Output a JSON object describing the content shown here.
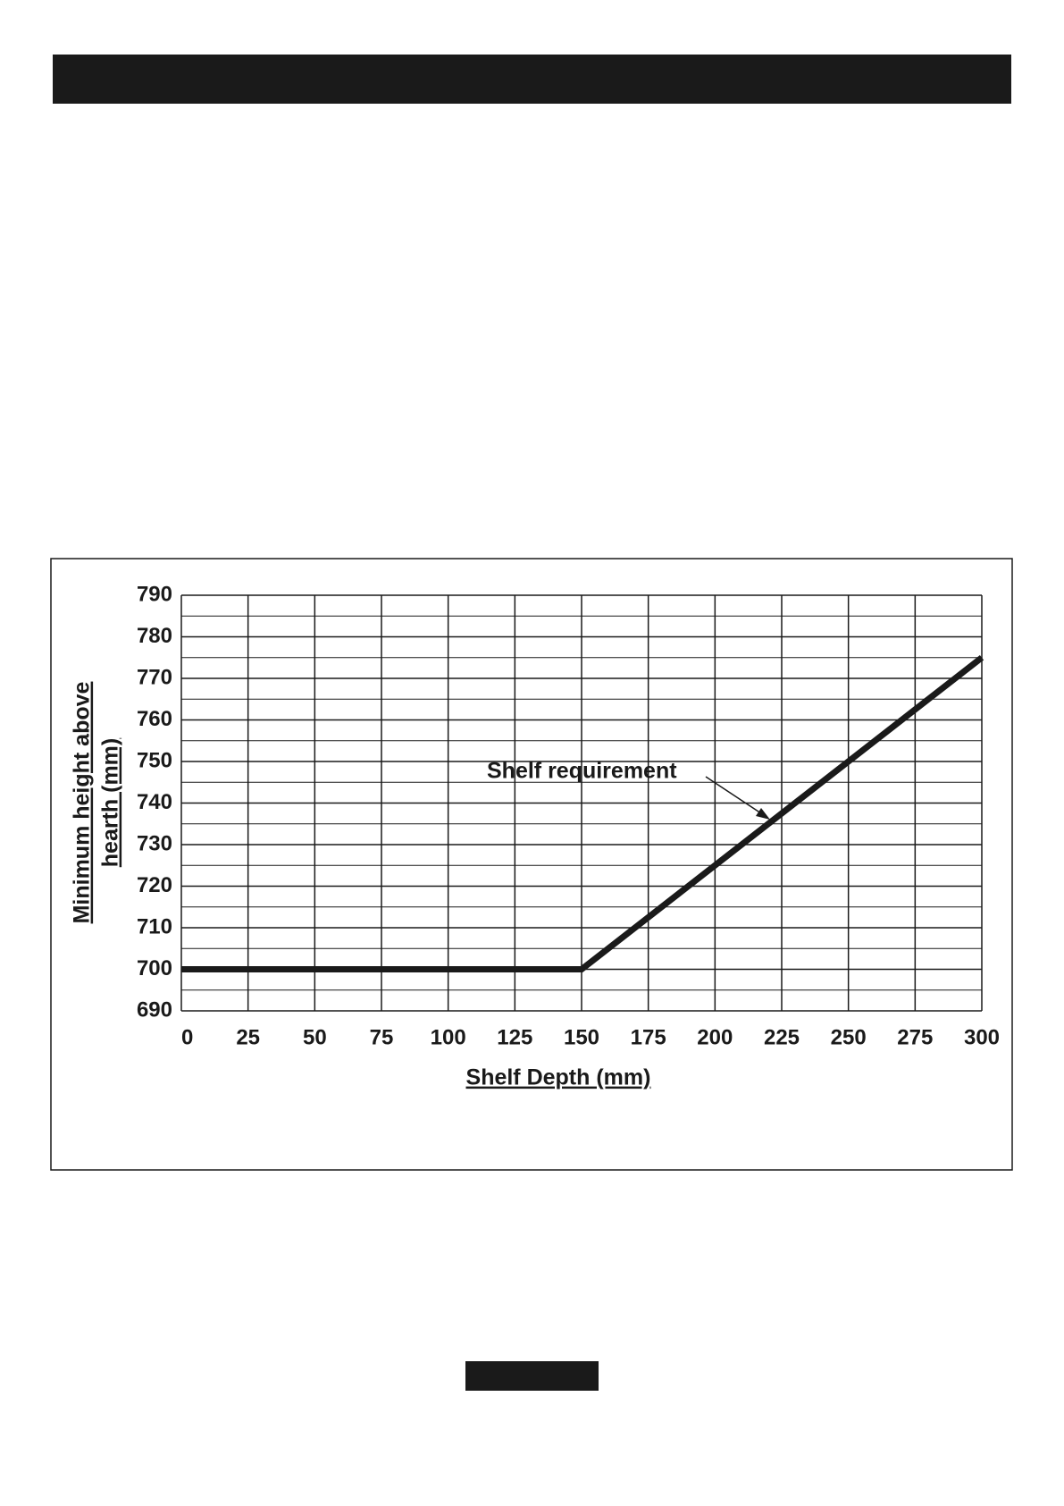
{
  "chart_data": {
    "type": "line",
    "xlabel": "Shelf Depth (mm)",
    "ylabel_lines": [
      "Minimum height above",
      "hearth (mm)"
    ],
    "annotation": "Shelf requirement",
    "x": [
      0,
      150,
      300
    ],
    "series": [
      {
        "color": "#1a1a1a",
        "values": [
          700,
          700,
          775
        ]
      }
    ],
    "xlim": [
      0,
      300
    ],
    "xticks": [
      0,
      25,
      50,
      75,
      100,
      125,
      150,
      175,
      200,
      225,
      250,
      275,
      300
    ],
    "ylim": [
      690,
      790
    ],
    "yticks": [
      690,
      700,
      710,
      720,
      730,
      740,
      750,
      760,
      770,
      780,
      790
    ],
    "grid": true,
    "minor_y_grid": true
  }
}
